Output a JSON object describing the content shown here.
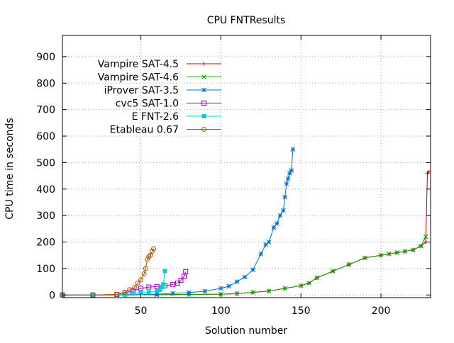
{
  "chart_data": {
    "type": "line",
    "title": "CPU FNTResults",
    "xlabel": "Solution number",
    "ylabel": "CPU time in seconds",
    "xlim": [
      1,
      231
    ],
    "ylim": [
      -10,
      980
    ],
    "xticks": [
      50,
      100,
      150,
      200
    ],
    "yticks": [
      0,
      100,
      200,
      300,
      400,
      500,
      600,
      700,
      800,
      900
    ],
    "grid": true,
    "legend_position": "top-left",
    "series": [
      {
        "name": "Vampire SAT-4.5",
        "color": "#c00000",
        "marker": "plus",
        "x": [
          1,
          20,
          40,
          60,
          80,
          100,
          110,
          120,
          130,
          140,
          150,
          155,
          160,
          170,
          180,
          190,
          200,
          205,
          210,
          215,
          220,
          225,
          228,
          229,
          230
        ],
        "y": [
          0,
          0,
          0.5,
          1,
          2,
          3,
          5,
          10,
          15,
          25,
          35,
          45,
          65,
          90,
          115,
          140,
          150,
          155,
          160,
          165,
          170,
          185,
          200,
          460,
          465
        ]
      },
      {
        "name": "Vampire SAT-4.6",
        "color": "#00a000",
        "marker": "cross",
        "x": [
          1,
          20,
          40,
          60,
          80,
          100,
          110,
          120,
          130,
          140,
          150,
          155,
          160,
          170,
          180,
          190,
          200,
          205,
          210,
          215,
          220,
          225,
          228
        ],
        "y": [
          0,
          0,
          0.5,
          1,
          2,
          3,
          5,
          10,
          15,
          25,
          35,
          45,
          65,
          90,
          115,
          140,
          150,
          155,
          160,
          165,
          170,
          185,
          220
        ]
      },
      {
        "name": "iProver SAT-3.5",
        "color": "#0070d0",
        "marker": "star",
        "x": [
          1,
          20,
          40,
          60,
          70,
          80,
          90,
          100,
          105,
          110,
          115,
          120,
          125,
          128,
          130,
          133,
          135,
          137,
          139,
          140,
          141,
          142,
          143,
          144,
          145
        ],
        "y": [
          0,
          0,
          1,
          3,
          6,
          9,
          14,
          25,
          33,
          50,
          68,
          95,
          155,
          190,
          200,
          255,
          270,
          300,
          320,
          370,
          420,
          440,
          460,
          470,
          550
        ]
      },
      {
        "name": "cvc5 SAT-1.0",
        "color": "#a000c0",
        "marker": "square",
        "x": [
          1,
          20,
          35,
          40,
          45,
          50,
          55,
          60,
          65,
          70,
          73,
          75,
          77,
          78
        ],
        "y": [
          0,
          0,
          2,
          8,
          15,
          25,
          30,
          32,
          35,
          40,
          45,
          55,
          70,
          88
        ]
      },
      {
        "name": "E FNT-2.6",
        "color": "#00d0d0",
        "marker": "filled-square",
        "x": [
          1,
          20,
          40,
          45,
          50,
          55,
          60,
          62,
          63,
          64,
          65
        ],
        "y": [
          0,
          0,
          2,
          5,
          8,
          10,
          14,
          20,
          30,
          40,
          90
        ]
      },
      {
        "name": "Etableau 0.67",
        "color": "#b05000",
        "marker": "circle",
        "x": [
          1,
          20,
          35,
          40,
          43,
          46,
          48,
          50,
          52,
          53,
          54,
          55,
          56,
          57,
          58
        ],
        "y": [
          0,
          0,
          2,
          10,
          20,
          28,
          45,
          58,
          80,
          100,
          135,
          145,
          150,
          165,
          175
        ]
      }
    ]
  }
}
